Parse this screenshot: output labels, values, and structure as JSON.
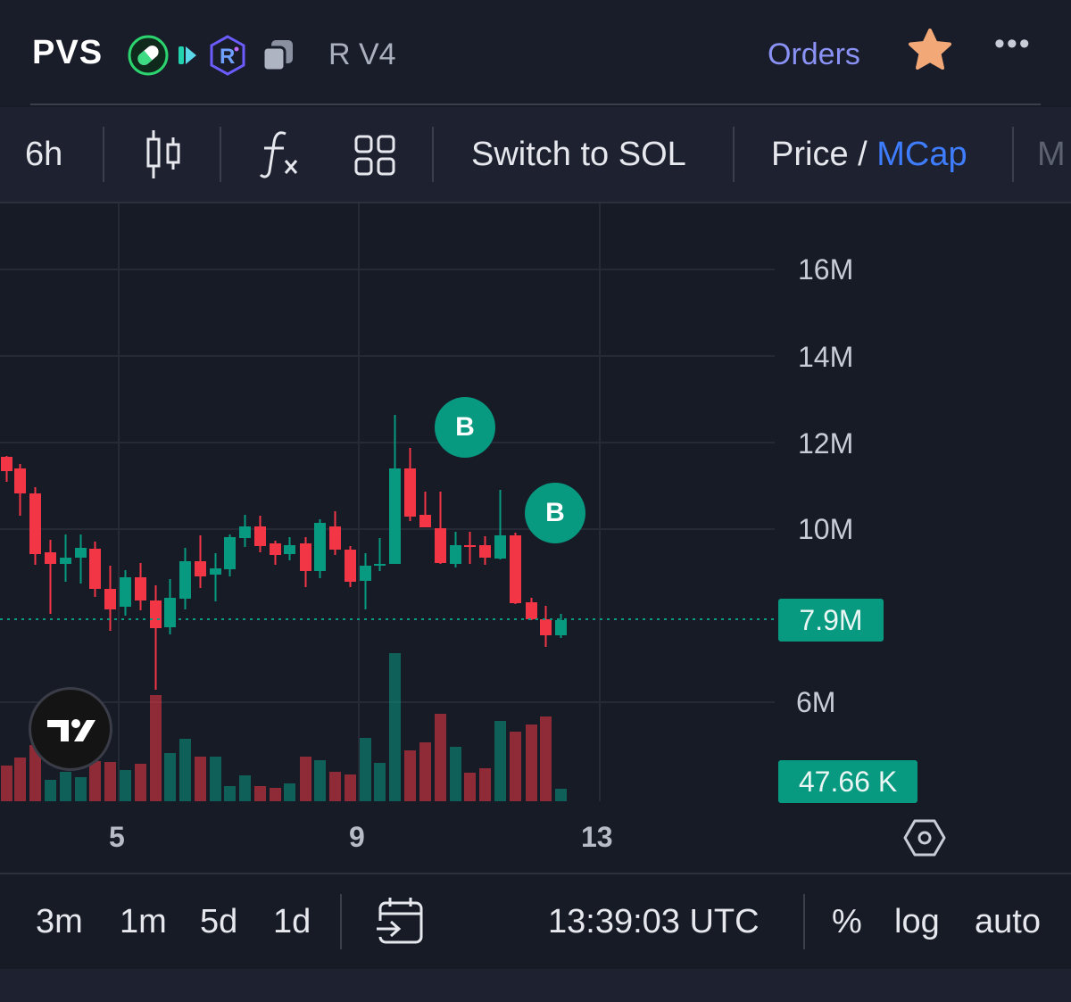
{
  "header": {
    "ticker": "PVS",
    "icons": [
      "pill-icon",
      "play-icon",
      "raydium-icon",
      "copy-icon"
    ],
    "pool_label": "R V4",
    "orders_label": "Orders",
    "favorite_icon": "star-icon",
    "more_icon": "more-icon",
    "more_glyph": "•••"
  },
  "toolbar": {
    "interval": "6h",
    "candle_icon": "candlestick-icon",
    "indicators_icon": "fx-icon",
    "layout_icon": "grid-icon",
    "switch_label": "Switch to SOL",
    "price_label": "Price",
    "slash": " / ",
    "mcap_label": "MCap",
    "cut_label": "M"
  },
  "chart": {
    "y_ticks": [
      "16M",
      "14M",
      "12M",
      "10M",
      "6M"
    ],
    "current_value": "7.9M",
    "volume_value": "47.66 K",
    "markers": [
      "B",
      "B"
    ],
    "x_ticks": [
      "5",
      "9",
      "13"
    ],
    "settings_icon": "settings-icon",
    "colors": {
      "up": "#089981",
      "down": "#f23645",
      "background": "#171b26"
    }
  },
  "bottombar": {
    "ranges": [
      "3m",
      "1m",
      "5d",
      "1d"
    ],
    "goto_icon": "calendar-goto-icon",
    "time": "13:39:03 UTC",
    "percent_label": "%",
    "log_label": "log",
    "auto_label": "auto"
  }
}
